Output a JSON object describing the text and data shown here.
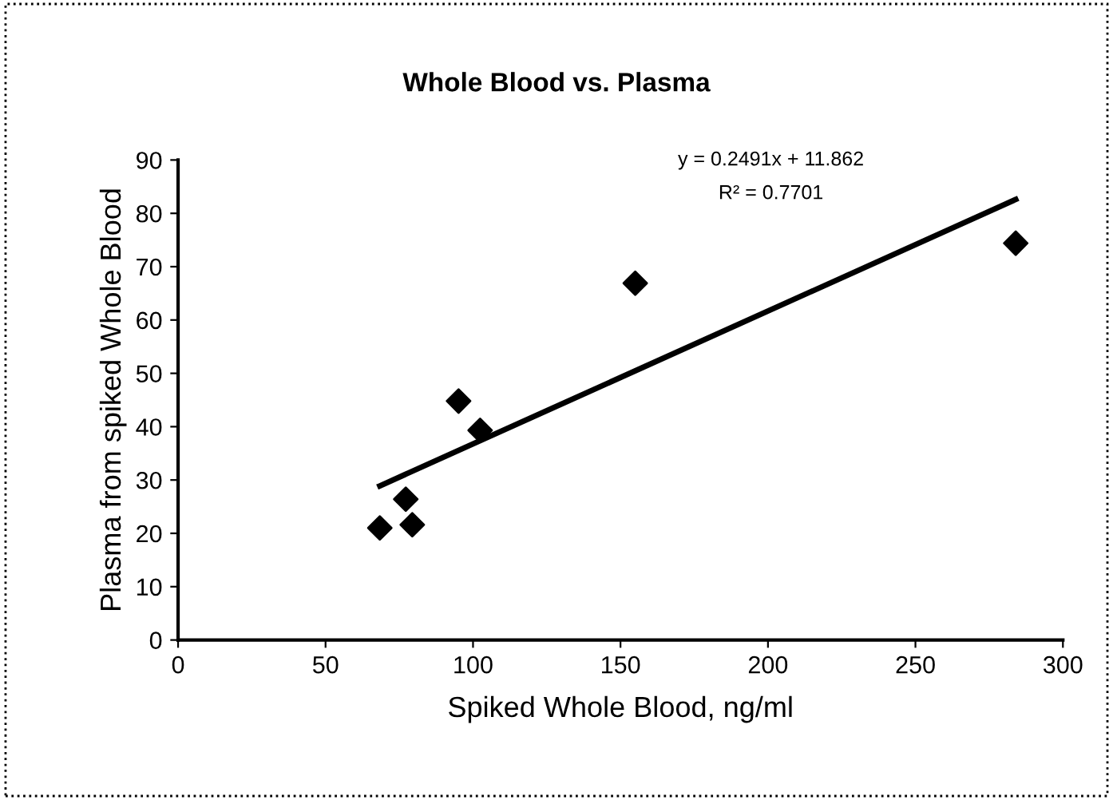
{
  "chart_data": {
    "type": "scatter",
    "title": "Whole Blood vs. Plasma",
    "xlabel": "Spiked Whole Blood, ng/ml",
    "ylabel": "Plasma from spiked Whole Blood",
    "annotations": [
      "y = 0.2491x + 11.862",
      "R² = 0.7701"
    ],
    "series": [
      {
        "color": "#000000",
        "marker": "diamond",
        "x": [
          68.4,
          77.2,
          79.4,
          95.1,
          102.4,
          155,
          284
        ],
        "values": [
          21,
          26.4,
          21.6,
          44.8,
          39.3,
          66.9,
          74.4
        ]
      },
      {
        "type": "line",
        "color": "#000000",
        "marker": "none",
        "line_style": "solid",
        "x": [
          68.4,
          284
        ],
        "values": [
          28.9,
          82.6
        ]
      }
    ],
    "xlim": [
      0,
      300
    ],
    "xticks": [
      0,
      50,
      100,
      150,
      200,
      250,
      300
    ],
    "ylim": [
      0,
      90
    ],
    "yticks": [
      0,
      10,
      20,
      30,
      40,
      50,
      60,
      70,
      80,
      90
    ],
    "grid": false,
    "legend": false
  }
}
